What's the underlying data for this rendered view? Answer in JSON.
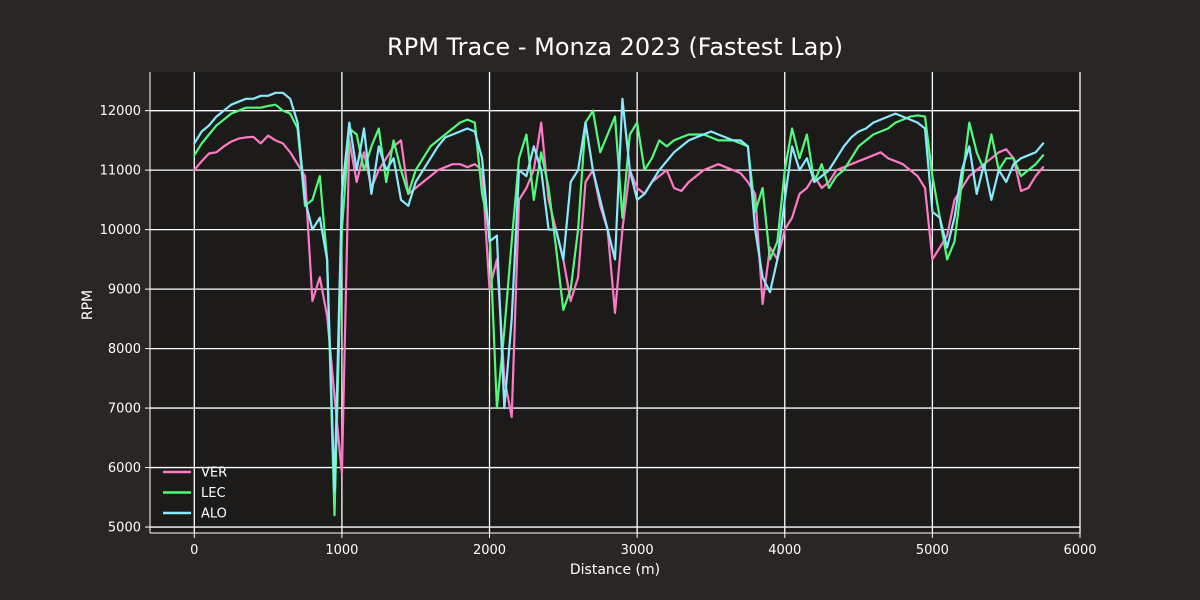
{
  "chart_data": {
    "type": "line",
    "title": "RPM Trace - Monza 2023 (Fastest Lap)",
    "xlabel": "Distance (m)",
    "ylabel": "RPM",
    "xlim": [
      -300,
      6000
    ],
    "ylim": [
      4900,
      12650
    ],
    "x_ticks": [
      0,
      1000,
      2000,
      3000,
      4000,
      5000,
      6000
    ],
    "y_ticks": [
      5000,
      6000,
      7000,
      8000,
      9000,
      10000,
      11000,
      12000
    ],
    "grid": true,
    "legend_position": "lower-left",
    "background": "#292624",
    "plot_background": "#1c1b1a",
    "series": [
      {
        "name": "VER",
        "color": "#ff79c6",
        "x": [
          0,
          50,
          100,
          150,
          200,
          250,
          300,
          350,
          400,
          450,
          500,
          550,
          600,
          650,
          700,
          750,
          800,
          850,
          900,
          950,
          1000,
          1050,
          1100,
          1150,
          1200,
          1250,
          1300,
          1350,
          1400,
          1450,
          1500,
          1550,
          1600,
          1650,
          1700,
          1750,
          1800,
          1850,
          1900,
          1950,
          2000,
          2050,
          2100,
          2150,
          2200,
          2250,
          2300,
          2350,
          2400,
          2450,
          2500,
          2550,
          2600,
          2650,
          2700,
          2750,
          2800,
          2850,
          2900,
          2950,
          3000,
          3050,
          3100,
          3150,
          3200,
          3250,
          3300,
          3350,
          3400,
          3450,
          3500,
          3550,
          3600,
          3650,
          3700,
          3750,
          3800,
          3850,
          3900,
          3950,
          4000,
          4050,
          4100,
          4150,
          4200,
          4250,
          4300,
          4350,
          4400,
          4450,
          4500,
          4550,
          4600,
          4650,
          4700,
          4750,
          4800,
          4850,
          4900,
          4950,
          5000,
          5050,
          5100,
          5150,
          5200,
          5250,
          5300,
          5350,
          5400,
          5450,
          5500,
          5550,
          5600,
          5650,
          5700,
          5750
        ],
        "values": [
          11000,
          11150,
          11280,
          11300,
          11400,
          11480,
          11530,
          11550,
          11560,
          11450,
          11580,
          11500,
          11450,
          11300,
          11100,
          10900,
          8800,
          9200,
          8550,
          7200,
          5900,
          11500,
          10800,
          11300,
          10700,
          11000,
          11200,
          11400,
          11500,
          10600,
          10700,
          10800,
          10900,
          11000,
          11050,
          11100,
          11100,
          11050,
          11100,
          11000,
          9000,
          9500,
          7500,
          6850,
          10500,
          10700,
          11000,
          11800,
          10500,
          10000,
          9500,
          8800,
          9200,
          10800,
          11000,
          10400,
          10000,
          8600,
          10000,
          11000,
          10700,
          10600,
          10800,
          10900,
          11000,
          10700,
          10650,
          10800,
          10900,
          11000,
          11050,
          11100,
          11050,
          11000,
          10950,
          10800,
          10600,
          8750,
          9700,
          9500,
          10000,
          10200,
          10600,
          10700,
          10900,
          10700,
          10800,
          11000,
          11050,
          11100,
          11150,
          11200,
          11250,
          11300,
          11200,
          11150,
          11100,
          11000,
          10900,
          10700,
          9500,
          9700,
          9900,
          10500,
          10700,
          10900,
          11000,
          11100,
          11200,
          11300,
          11350,
          11200,
          10650,
          10700,
          10900,
          11050
        ]
      },
      {
        "name": "LEC",
        "color": "#50fa7b",
        "x": [
          0,
          50,
          100,
          150,
          200,
          250,
          300,
          350,
          400,
          450,
          500,
          550,
          600,
          650,
          700,
          750,
          800,
          850,
          900,
          950,
          1000,
          1050,
          1100,
          1150,
          1200,
          1250,
          1300,
          1350,
          1400,
          1450,
          1500,
          1550,
          1600,
          1650,
          1700,
          1750,
          1800,
          1850,
          1900,
          1950,
          2000,
          2050,
          2100,
          2150,
          2200,
          2250,
          2300,
          2350,
          2400,
          2450,
          2500,
          2550,
          2600,
          2650,
          2700,
          2750,
          2800,
          2850,
          2900,
          2950,
          3000,
          3050,
          3100,
          3150,
          3200,
          3250,
          3300,
          3350,
          3400,
          3450,
          3500,
          3550,
          3600,
          3650,
          3700,
          3750,
          3800,
          3850,
          3900,
          3950,
          4000,
          4050,
          4100,
          4150,
          4200,
          4250,
          4300,
          4350,
          4400,
          4450,
          4500,
          4550,
          4600,
          4650,
          4700,
          4750,
          4800,
          4850,
          4900,
          4950,
          5000,
          5050,
          5100,
          5150,
          5200,
          5250,
          5300,
          5350,
          5400,
          5450,
          5500,
          5550,
          5600,
          5650,
          5700,
          5750
        ],
        "values": [
          11250,
          11450,
          11600,
          11750,
          11850,
          11950,
          12000,
          12050,
          12050,
          12050,
          12080,
          12100,
          12000,
          11950,
          11700,
          10400,
          10500,
          10900,
          9500,
          5200,
          10000,
          11700,
          11600,
          11000,
          11400,
          11700,
          10800,
          11500,
          11000,
          10600,
          11000,
          11200,
          11400,
          11500,
          11600,
          11700,
          11800,
          11850,
          11800,
          10600,
          10000,
          7000,
          8300,
          9800,
          11200,
          11600,
          10500,
          11300,
          10700,
          9700,
          8650,
          9000,
          10000,
          11800,
          12000,
          11300,
          11600,
          11900,
          10200,
          11600,
          11800,
          11000,
          11200,
          11500,
          11400,
          11500,
          11550,
          11600,
          11600,
          11600,
          11550,
          11500,
          11500,
          11500,
          11450,
          11400,
          10300,
          10700,
          9500,
          9800,
          11000,
          11700,
          11200,
          11600,
          10800,
          11100,
          10700,
          10900,
          11000,
          11200,
          11400,
          11500,
          11600,
          11650,
          11700,
          11800,
          11850,
          11900,
          11920,
          11900,
          10900,
          10200,
          9500,
          9800,
          10800,
          11800,
          11300,
          11000,
          11600,
          11000,
          11200,
          11200,
          10900,
          11000,
          11100,
          11250
        ]
      },
      {
        "name": "ALO",
        "color": "#8be9fd",
        "x": [
          0,
          50,
          100,
          150,
          200,
          250,
          300,
          350,
          400,
          450,
          500,
          550,
          600,
          650,
          700,
          750,
          800,
          850,
          900,
          950,
          1000,
          1050,
          1100,
          1150,
          1200,
          1250,
          1300,
          1350,
          1400,
          1450,
          1500,
          1550,
          1600,
          1650,
          1700,
          1750,
          1800,
          1850,
          1900,
          1950,
          2000,
          2050,
          2100,
          2150,
          2200,
          2250,
          2300,
          2350,
          2400,
          2450,
          2500,
          2550,
          2600,
          2650,
          2700,
          2750,
          2800,
          2850,
          2900,
          2950,
          3000,
          3050,
          3100,
          3150,
          3200,
          3250,
          3300,
          3350,
          3400,
          3450,
          3500,
          3550,
          3600,
          3650,
          3700,
          3750,
          3800,
          3850,
          3900,
          3950,
          4000,
          4050,
          4100,
          4150,
          4200,
          4250,
          4300,
          4350,
          4400,
          4450,
          4500,
          4550,
          4600,
          4650,
          4700,
          4750,
          4800,
          4850,
          4900,
          4950,
          5000,
          5050,
          5100,
          5150,
          5200,
          5250,
          5300,
          5350,
          5400,
          5450,
          5500,
          5550,
          5600,
          5650,
          5700,
          5750
        ],
        "values": [
          11450,
          11650,
          11750,
          11900,
          12000,
          12100,
          12150,
          12200,
          12200,
          12250,
          12250,
          12300,
          12300,
          12200,
          11800,
          10500,
          10000,
          10200,
          9500,
          5600,
          10600,
          11800,
          11000,
          11700,
          10600,
          11400,
          11000,
          11200,
          10500,
          10400,
          10800,
          11000,
          11200,
          11400,
          11550,
          11600,
          11650,
          11700,
          11650,
          11200,
          9800,
          9900,
          7000,
          8500,
          11000,
          10900,
          11400,
          11000,
          10000,
          10000,
          9500,
          10800,
          11000,
          11800,
          11000,
          10500,
          10000,
          9500,
          12200,
          11000,
          10500,
          10600,
          10800,
          11000,
          11150,
          11300,
          11400,
          11500,
          11550,
          11600,
          11650,
          11600,
          11550,
          11500,
          11500,
          11400,
          10000,
          9200,
          8950,
          9500,
          10500,
          11400,
          11000,
          11200,
          10800,
          10900,
          11000,
          11200,
          11400,
          11550,
          11650,
          11700,
          11800,
          11850,
          11900,
          11950,
          11900,
          11850,
          11800,
          11700,
          10300,
          10200,
          9700,
          10200,
          11000,
          11400,
          10600,
          11100,
          10500,
          11000,
          10800,
          11100,
          11200,
          11250,
          11300,
          11450
        ]
      }
    ]
  }
}
